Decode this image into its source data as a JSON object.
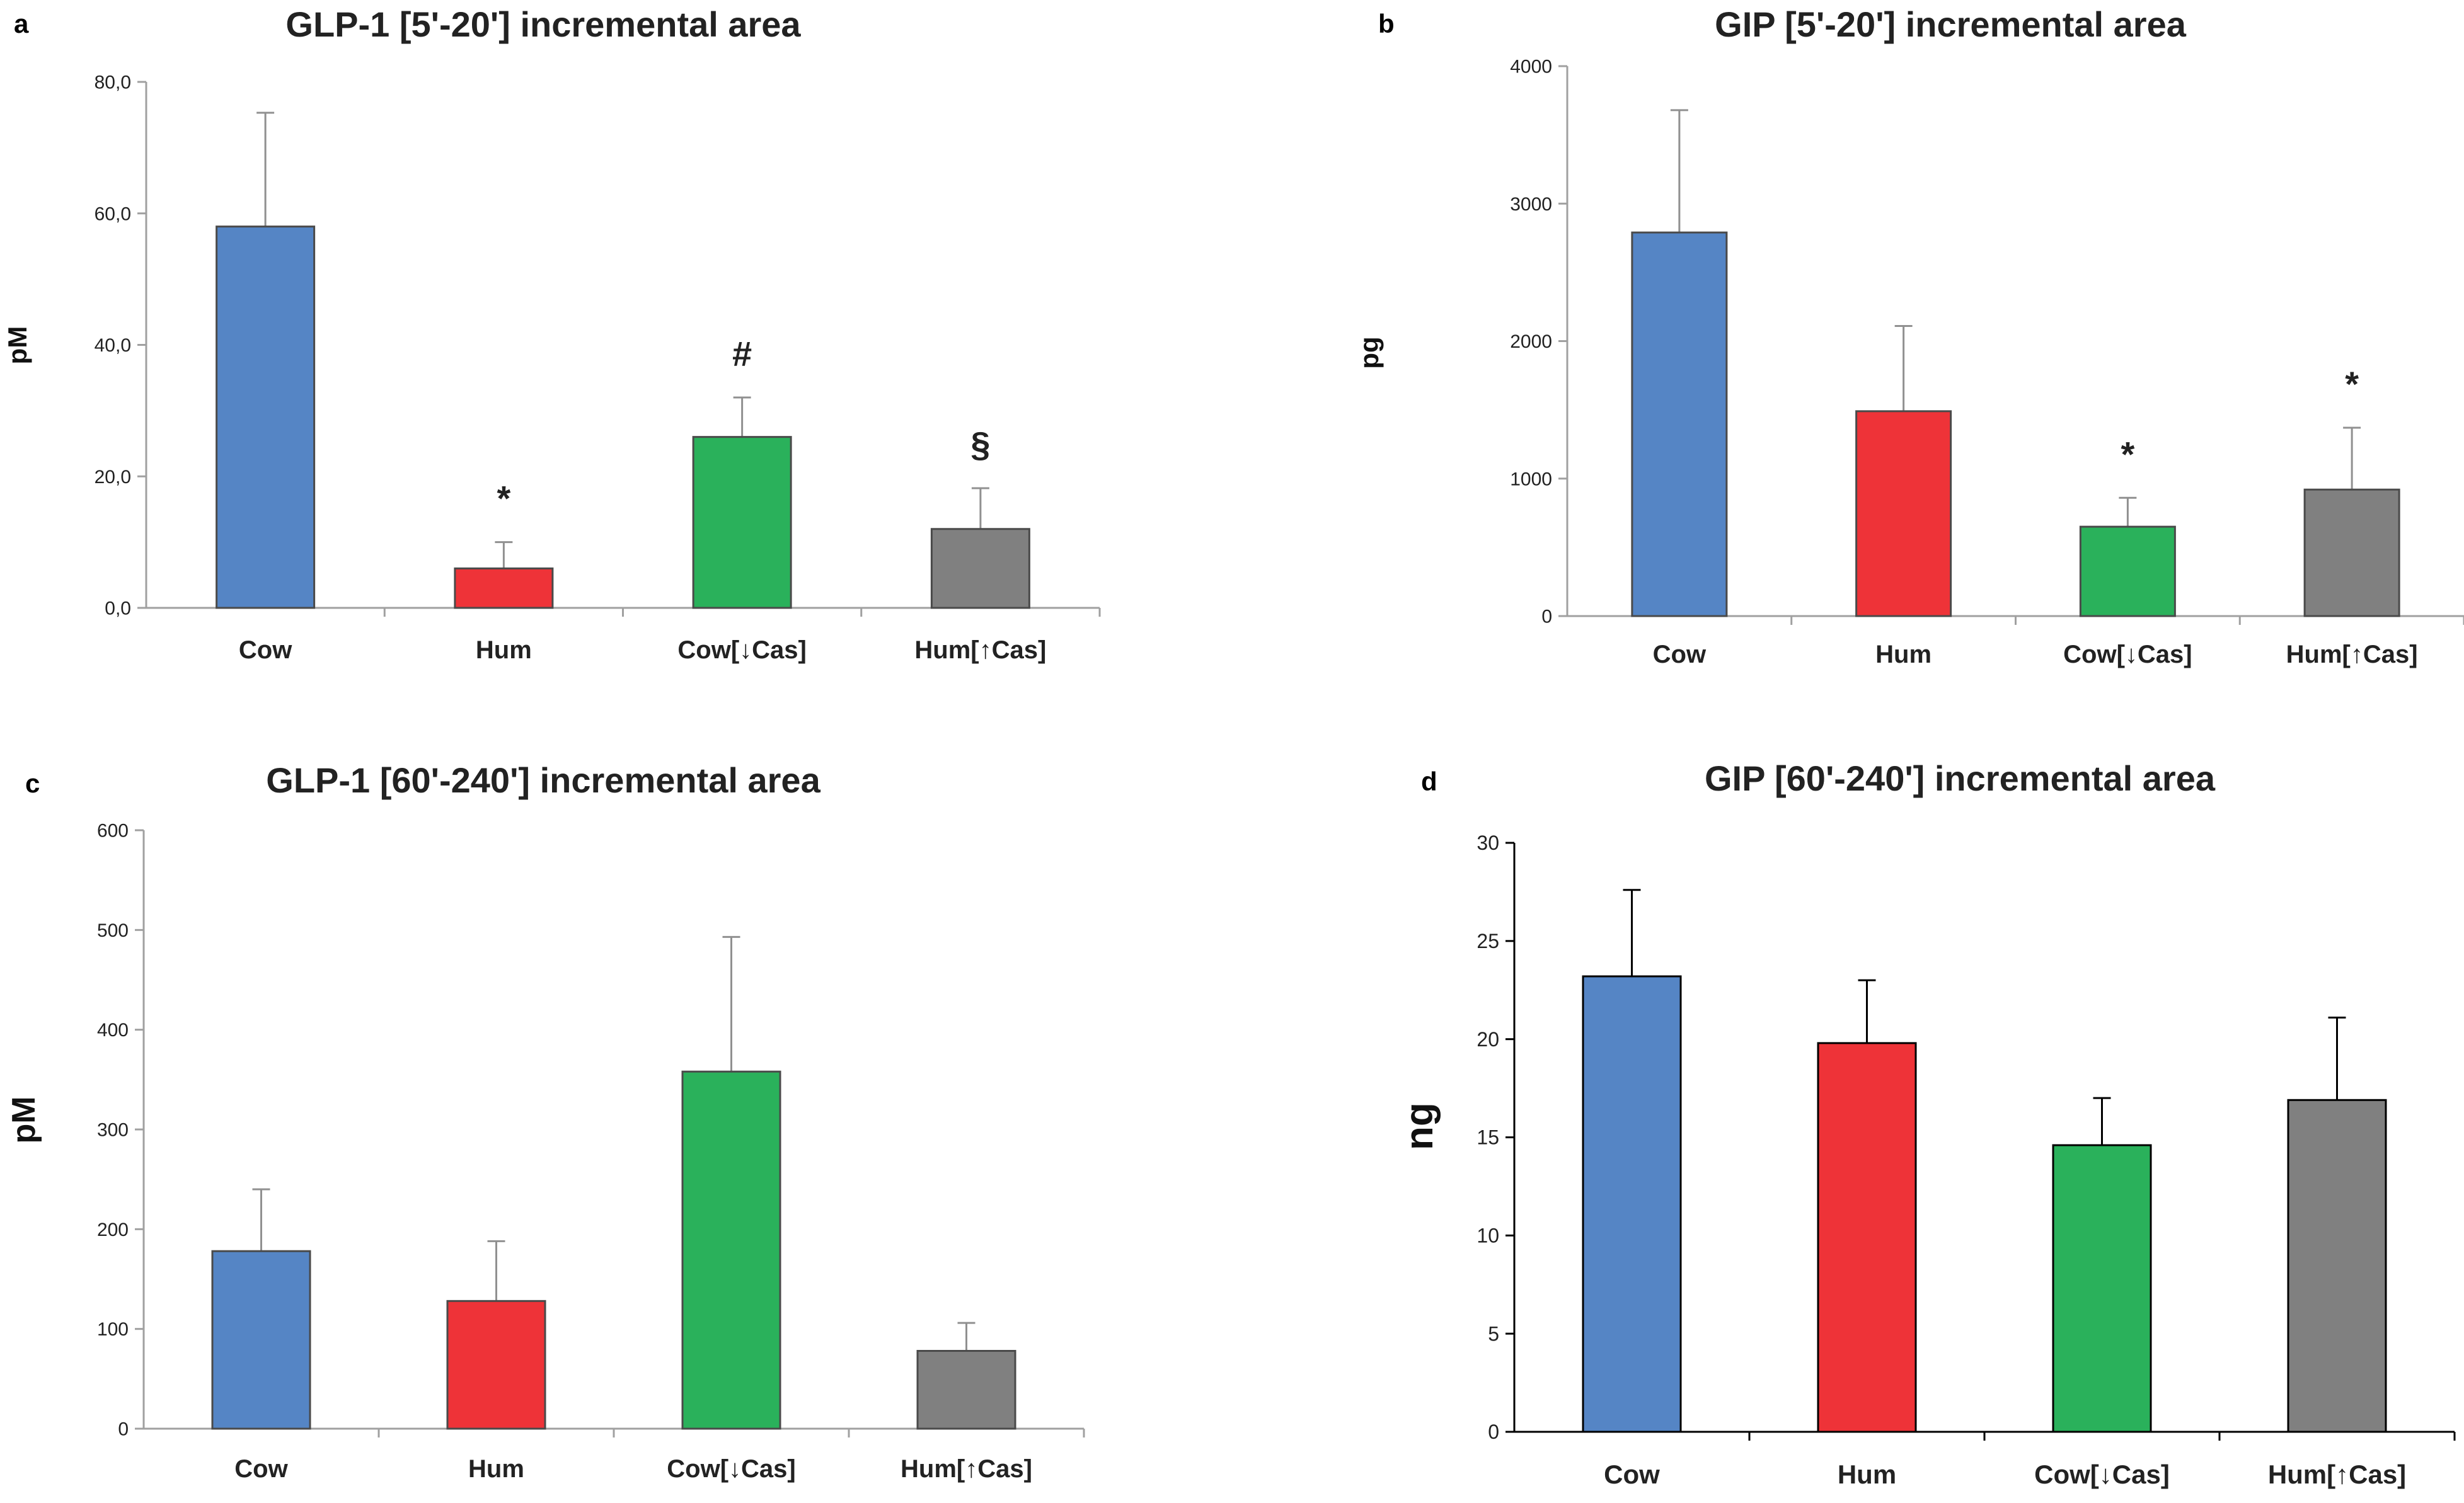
{
  "chart_data": [
    {
      "panel_label": "a",
      "type": "bar",
      "title": "GLP-1 [5'-20'] incremental area",
      "ylabel": "pM",
      "categories": [
        "Cow",
        "Hum",
        "Cow[↓Cas]",
        "Hum[↑Cas]"
      ],
      "values": [
        58.0,
        6.0,
        26.0,
        12.0
      ],
      "errors": [
        17.3,
        4.0,
        6.0,
        6.2
      ],
      "colors": [
        "#5585c5",
        "#ee3338",
        "#2ab15b",
        "#808080"
      ],
      "annotations": [
        "",
        "*",
        "#",
        "§"
      ],
      "ylim": [
        0,
        80
      ],
      "yticks": [
        "0,0",
        "20,0",
        "40,0",
        "60,0",
        "80,0"
      ],
      "grid": false,
      "legend": "none"
    },
    {
      "panel_label": "b",
      "type": "bar",
      "title": "GIP [5'-20'] incremental area",
      "ylabel": "pg",
      "categories": [
        "Cow",
        "Hum",
        "Cow[↓Cas]",
        "Hum[↑Cas]"
      ],
      "values": [
        2790,
        1490,
        650,
        920
      ],
      "errors": [
        890,
        620,
        210,
        450
      ],
      "colors": [
        "#5585c5",
        "#ee3338",
        "#2ab15b",
        "#808080"
      ],
      "annotations": [
        "",
        "",
        "*",
        "*"
      ],
      "ylim": [
        0,
        4000
      ],
      "yticks": [
        "0",
        "1000",
        "2000",
        "3000",
        "4000"
      ],
      "grid": false,
      "legend": "none"
    },
    {
      "panel_label": "c",
      "type": "bar",
      "title": "GLP-1 [60'-240'] incremental area",
      "ylabel": "pM",
      "categories": [
        "Cow",
        "Hum",
        "Cow[↓Cas]",
        "Hum[↑Cas]"
      ],
      "values": [
        178,
        128,
        358,
        78
      ],
      "errors": [
        62,
        60,
        135,
        28
      ],
      "colors": [
        "#5585c5",
        "#ee3338",
        "#2ab15b",
        "#808080"
      ],
      "annotations": [
        "",
        "",
        "",
        ""
      ],
      "ylim": [
        0,
        600
      ],
      "yticks": [
        "0",
        "100",
        "200",
        "300",
        "400",
        "500",
        "600"
      ],
      "grid": false,
      "legend": "none"
    },
    {
      "panel_label": "d",
      "type": "bar",
      "title": "GIP [60'-240'] incremental area",
      "ylabel": "ng",
      "categories": [
        "Cow",
        "Hum",
        "Cow[↓Cas]",
        "Hum[↑Cas]"
      ],
      "values": [
        23.2,
        19.8,
        14.6,
        16.9
      ],
      "errors": [
        4.4,
        3.2,
        2.4,
        4.2
      ],
      "colors": [
        "#5585c5",
        "#ee3338",
        "#2ab15b",
        "#808080"
      ],
      "annotations": [
        "",
        "",
        "",
        ""
      ],
      "ylim": [
        0,
        30
      ],
      "yticks": [
        "0",
        "5",
        "10",
        "15",
        "20",
        "25",
        "30"
      ],
      "grid": false,
      "legend": "none"
    }
  ]
}
